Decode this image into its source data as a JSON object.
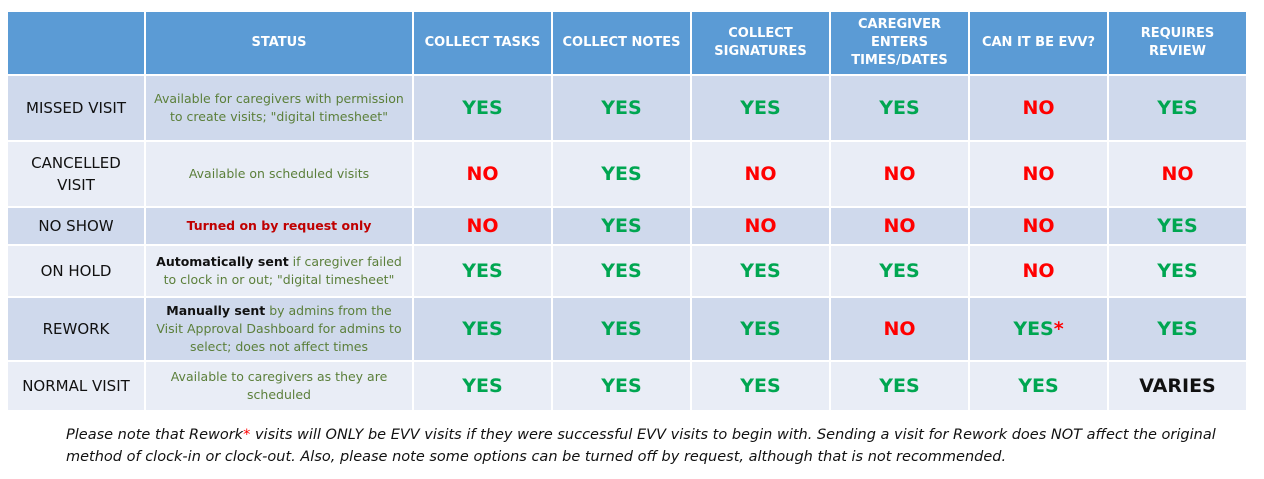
{
  "headers": [
    "",
    "STATUS",
    "COLLECT TASKS",
    "COLLECT NOTES",
    "COLLECT SIGNATURES",
    "CAREGIVER ENTERS TIMES/DATES",
    "CAN IT BE EVV?",
    "REQUIRES REVIEW"
  ],
  "rows": [
    {
      "label": "MISSED VISIT",
      "status_bold": "",
      "status_text": "Available for caregivers with permission to create visits; \"digital timesheet\"",
      "values": [
        "YES",
        "YES",
        "YES",
        "YES",
        "NO",
        "YES"
      ]
    },
    {
      "label": "CANCELLED VISIT",
      "status_bold": "",
      "status_text": "Available on scheduled visits",
      "values": [
        "NO",
        "YES",
        "NO",
        "NO",
        "NO",
        "NO"
      ]
    },
    {
      "label": "NO SHOW",
      "status_bold": "",
      "status_text": "Turned on by request only",
      "values": [
        "NO",
        "YES",
        "NO",
        "NO",
        "NO",
        "YES"
      ]
    },
    {
      "label": "ON HOLD",
      "status_bold": "Automatically sent",
      "status_text": " if caregiver failed to clock in or out; \"digital timesheet\"",
      "values": [
        "YES",
        "YES",
        "YES",
        "YES",
        "NO",
        "YES"
      ]
    },
    {
      "label": "REWORK",
      "status_bold": "Manually sent",
      "status_text": " by admins from the Visit Approval Dashboard for admins to select; does not affect times",
      "values": [
        "YES",
        "YES",
        "YES",
        "NO",
        "YES",
        "YES"
      ],
      "evv_asterisk": "*"
    },
    {
      "label": "NORMAL VISIT",
      "status_bold": "",
      "status_text": "Available to caregivers as they are scheduled",
      "values": [
        "YES",
        "YES",
        "YES",
        "YES",
        "YES",
        "VARIES"
      ]
    }
  ],
  "note": {
    "before": "Please note that Rework",
    "asterisk": "*",
    "after": " visits will ONLY be EVV visits if they were successful EVV visits to begin with. Sending a visit for Rework does NOT affect the original method of clock-in or clock-out. Also, please note some options can be turned off by request, although that is not recommended."
  },
  "colors": {
    "header_bg": "#5b9bd5",
    "row_dark": "#cfd9ec",
    "row_light": "#e9edf6",
    "yes": "#00a651",
    "no": "#ff0000",
    "status_text": "#5b7f3a"
  }
}
